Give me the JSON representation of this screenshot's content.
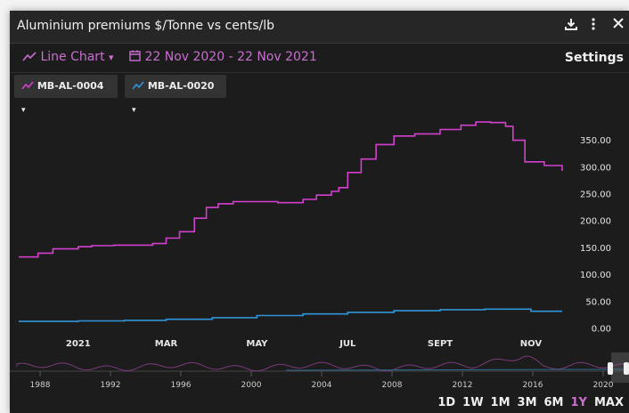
{
  "title": "Aluminium premiums $/Tonne vs cents/lb",
  "header_icons": [
    "download-icon",
    "more-vertical-icon",
    "close-icon"
  ],
  "toolbar": {
    "chart_type_label": "Line Chart",
    "chart_type_caret": "▾",
    "date_range": "22 Nov 2020 - 22 Nov 2021",
    "settings_label": "Settings"
  },
  "series_chips": [
    {
      "label": "MB-AL-0004",
      "color": "#d43fd0"
    },
    {
      "label": "MB-AL-0020",
      "color": "#2f95d8"
    }
  ],
  "range_buttons": [
    "1D",
    "1W",
    "1M",
    "3M",
    "6M",
    "1Y",
    "MAX"
  ],
  "active_range": "1Y",
  "colors": {
    "accent": "#c96fd0",
    "active_range": "#c96fd0"
  },
  "chart_data": {
    "type": "line",
    "title": "",
    "xlabel": "",
    "ylabel": "",
    "x_ticks": [
      "2021",
      "MAR",
      "MAY",
      "JUL",
      "SEPT",
      "NOV"
    ],
    "y_ticks": [
      "0.00",
      "50.00",
      "100.00",
      "150.00",
      "200.00",
      "250.00",
      "300.00",
      "350.00"
    ],
    "ylim": [
      0,
      400
    ],
    "grid": false,
    "series": [
      {
        "color": "#d43fd0",
        "x": [
          "2020-11-22",
          "2020-12-05",
          "2020-12-15",
          "2021-01-01",
          "2021-01-10",
          "2021-01-25",
          "2021-02-05",
          "2021-02-20",
          "2021-03-01",
          "2021-03-10",
          "2021-03-20",
          "2021-03-28",
          "2021-04-05",
          "2021-04-15",
          "2021-05-01",
          "2021-05-15",
          "2021-06-01",
          "2021-06-10",
          "2021-06-20",
          "2021-06-25",
          "2021-07-01",
          "2021-07-10",
          "2021-07-20",
          "2021-08-01",
          "2021-08-15",
          "2021-09-01",
          "2021-09-15",
          "2021-09-25",
          "2021-10-05",
          "2021-10-15",
          "2021-10-20",
          "2021-10-28",
          "2021-11-10",
          "2021-11-22"
        ],
        "values": [
          133,
          140,
          148,
          152,
          154,
          155,
          155,
          158,
          168,
          180,
          205,
          225,
          232,
          236,
          236,
          234,
          240,
          248,
          255,
          262,
          290,
          315,
          342,
          358,
          362,
          370,
          378,
          384,
          383,
          376,
          350,
          310,
          303,
          293
        ]
      },
      {
        "color": "#2f95d8",
        "x": [
          "2020-11-22",
          "2021-01-01",
          "2021-02-01",
          "2021-03-01",
          "2021-04-01",
          "2021-05-01",
          "2021-06-01",
          "2021-07-01",
          "2021-08-01",
          "2021-09-01",
          "2021-10-01",
          "2021-10-20",
          "2021-11-01",
          "2021-11-22"
        ],
        "values": [
          13,
          14,
          15,
          17,
          20,
          24,
          27,
          30,
          33,
          35,
          36,
          36,
          32,
          32
        ]
      }
    ],
    "navigator": {
      "x_ticks": [
        "1988",
        "1992",
        "1996",
        "2000",
        "2004",
        "2008",
        "2012",
        "2016",
        "2020"
      ]
    }
  }
}
